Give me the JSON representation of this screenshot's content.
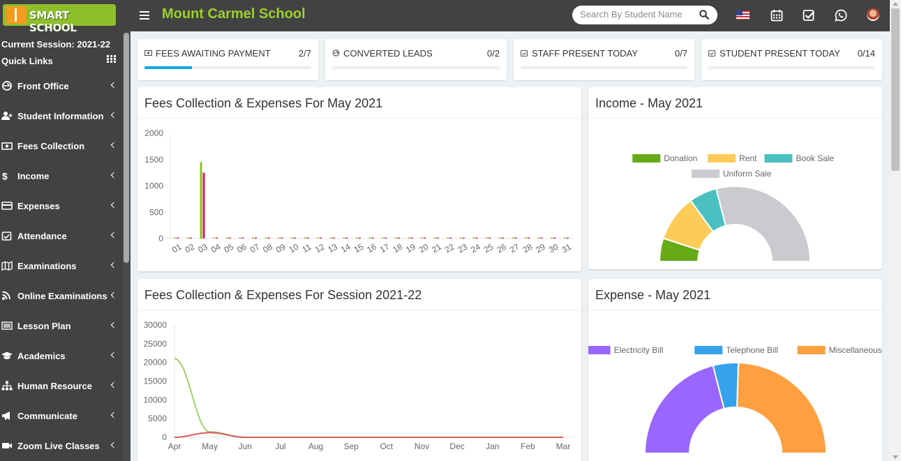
{
  "header": {
    "logo_text": "SMART SCHOOL",
    "school_name": "Mount Carmel School",
    "search_placeholder": "Search By Student Name"
  },
  "icons": {
    "menu": "hamburger-icon",
    "search": "search-icon",
    "language": "us-flag-icon",
    "calendar": "calendar-icon",
    "tasks": "check-square-icon",
    "chat": "whatsapp-icon",
    "profile": "user-avatar-icon"
  },
  "sidebar": {
    "session_label": "Current Session: 2021-22",
    "quick_links_label": "Quick Links",
    "items": [
      {
        "label": "Front Office",
        "icon": "front-office-icon"
      },
      {
        "label": "Student Information",
        "icon": "user-plus-icon"
      },
      {
        "label": "Fees Collection",
        "icon": "money-icon"
      },
      {
        "label": "Income",
        "icon": "dollar-icon"
      },
      {
        "label": "Expenses",
        "icon": "credit-card-icon"
      },
      {
        "label": "Attendance",
        "icon": "calendar-check-icon"
      },
      {
        "label": "Examinations",
        "icon": "map-icon"
      },
      {
        "label": "Online Examinations",
        "icon": "rss-icon"
      },
      {
        "label": "Lesson Plan",
        "icon": "list-icon"
      },
      {
        "label": "Academics",
        "icon": "graduation-cap-icon"
      },
      {
        "label": "Human Resource",
        "icon": "sitemap-icon"
      },
      {
        "label": "Communicate",
        "icon": "bullhorn-icon"
      },
      {
        "label": "Zoom Live Classes",
        "icon": "video-icon"
      }
    ]
  },
  "stats": [
    {
      "label": "FEES AWAITING PAYMENT",
      "value": "2/7",
      "progress": 0.2857
    },
    {
      "label": "CONVERTED LEADS",
      "value": "0/2",
      "progress": 0
    },
    {
      "label": "STAFF PRESENT TODAY",
      "value": "0/7",
      "progress": 0
    },
    {
      "label": "STUDENT PRESENT TODAY",
      "value": "0/14",
      "progress": 0
    }
  ],
  "panels": {
    "fees_month_title": "Fees Collection & Expenses For May 2021",
    "income_title": "Income - May 2021",
    "fees_session_title": "Fees Collection & Expenses For Session 2021-22",
    "expense_title": "Expense - May 2021"
  },
  "chart_data": [
    {
      "type": "bar",
      "title": "Fees Collection & Expenses For May 2021",
      "categories": [
        "01",
        "02",
        "03",
        "04",
        "05",
        "06",
        "07",
        "08",
        "09",
        "10",
        "11",
        "12",
        "13",
        "14",
        "15",
        "16",
        "17",
        "18",
        "19",
        "20",
        "21",
        "22",
        "23",
        "24",
        "25",
        "26",
        "27",
        "28",
        "29",
        "30",
        "31"
      ],
      "series": [
        {
          "color": "#8dbf2d",
          "values": [
            0,
            0,
            1450,
            0,
            0,
            0,
            0,
            0,
            0,
            0,
            0,
            0,
            0,
            0,
            0,
            0,
            0,
            0,
            0,
            0,
            0,
            0,
            0,
            0,
            0,
            0,
            0,
            0,
            0,
            0,
            0
          ]
        },
        {
          "color": "#d6195f",
          "values": [
            0,
            0,
            1250,
            0,
            0,
            0,
            0,
            0,
            0,
            0,
            0,
            0,
            0,
            0,
            0,
            0,
            0,
            0,
            0,
            0,
            0,
            0,
            0,
            0,
            0,
            0,
            0,
            0,
            0,
            0,
            0
          ]
        }
      ],
      "yticks": [
        "2000",
        "1500",
        "1000",
        "500",
        "0"
      ],
      "ylim": [
        0,
        2000
      ]
    },
    {
      "type": "pie",
      "title": "Income - May 2021",
      "labels": [
        "Donation",
        "Rent",
        "Book Sale",
        "Uniform Sale"
      ],
      "values": [
        10,
        20,
        12,
        58
      ],
      "colors": [
        "#66aa18",
        "#fecb59",
        "#4ac0c0",
        "#c9cbcf"
      ]
    },
    {
      "type": "line",
      "title": "Fees Collection & Expenses For Session 2021-22",
      "categories": [
        "Apr",
        "May",
        "Jun",
        "Jul",
        "Aug",
        "Sep",
        "Oct",
        "Nov",
        "Dec",
        "Jan",
        "Feb",
        "Mar"
      ],
      "series": [
        {
          "color": "#9ccf6b",
          "values": [
            21000,
            1450,
            0,
            0,
            0,
            0,
            0,
            0,
            0,
            0,
            0,
            0
          ]
        },
        {
          "color": "#dc5b5b",
          "values": [
            0,
            1250,
            0,
            0,
            0,
            0,
            0,
            0,
            0,
            0,
            0,
            0
          ]
        }
      ],
      "yticks": [
        "30000",
        "25000",
        "20000",
        "15000",
        "10000",
        "5000",
        "0"
      ],
      "ylim": [
        0,
        30000
      ]
    },
    {
      "type": "pie",
      "title": "Expense - May 2021",
      "labels": [
        "Electricity Bill",
        "Telephone Bill",
        "Miscellaneous"
      ],
      "values": [
        42,
        9,
        49
      ],
      "colors": [
        "#9966ff",
        "#36a2eb",
        "#ff9f40"
      ]
    }
  ]
}
